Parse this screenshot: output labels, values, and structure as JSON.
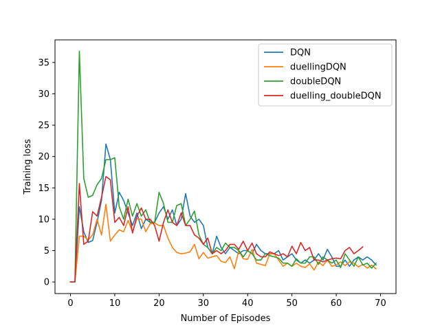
{
  "chart_data": {
    "type": "line",
    "title": "",
    "xlabel": "Number of Episodes",
    "ylabel": "Training loss",
    "xlim": [
      -3.5,
      73.5
    ],
    "ylim": [
      -1.85,
      38.6
    ],
    "xticks": [
      0,
      10,
      20,
      30,
      40,
      50,
      60,
      70
    ],
    "yticks": [
      0,
      5,
      10,
      15,
      20,
      25,
      30,
      35
    ],
    "grid": false,
    "legend_position": "top-right",
    "series": [
      {
        "name": "DQN",
        "color": "#1f77b4",
        "x": [
          0,
          1,
          2,
          3,
          4,
          5,
          6,
          7,
          8,
          9,
          10,
          11,
          12,
          13,
          14,
          15,
          16,
          17,
          18,
          19,
          20,
          21,
          22,
          23,
          24,
          25,
          26,
          27,
          28,
          29,
          30,
          31,
          32,
          33,
          34,
          35,
          36,
          37,
          38,
          39,
          40,
          41,
          42,
          43,
          44,
          45,
          46,
          47,
          48,
          49,
          50,
          51,
          52,
          53,
          54,
          55,
          56,
          57,
          58,
          59,
          60,
          61,
          62,
          63,
          64,
          65,
          66,
          67,
          68,
          69
        ],
        "y": [
          0,
          0,
          12,
          8,
          6.3,
          6.6,
          9.5,
          13,
          22,
          19.5,
          11,
          14.3,
          13,
          11,
          9,
          11,
          8.5,
          10,
          9.5,
          9.5,
          11,
          12,
          10,
          11.5,
          9,
          10,
          14.1,
          10.5,
          9.5,
          10,
          9,
          5.5,
          4.5,
          7.3,
          5.5,
          4.5,
          5.5,
          5,
          4.5,
          5,
          5,
          4.5,
          6,
          5,
          4.5,
          4.5,
          4.5,
          5,
          3.5,
          4,
          4.5,
          3.5,
          3,
          3.5,
          3,
          3.5,
          4.5,
          3.5,
          5.2,
          4,
          2.5,
          2.5,
          3.5,
          2.5,
          3.5,
          4,
          3.5,
          4,
          3.5,
          2.7
        ]
      },
      {
        "name": "duellingDQN",
        "color": "#ff7f0e",
        "x": [
          0,
          1,
          2,
          3,
          4,
          5,
          6,
          7,
          8,
          9,
          10,
          11,
          12,
          13,
          14,
          15,
          16,
          17,
          18,
          19,
          20,
          21,
          22,
          23,
          24,
          25,
          26,
          27,
          28,
          29,
          30,
          31,
          32,
          33,
          34,
          35,
          36,
          37,
          38,
          39,
          40,
          41,
          42,
          43,
          44,
          45,
          46,
          47,
          48,
          49,
          50,
          51,
          52,
          53,
          54,
          55,
          56,
          57,
          58,
          59,
          60,
          61,
          62,
          63,
          64,
          65,
          66,
          67,
          68,
          69
        ],
        "y": [
          0,
          0,
          7.3,
          7.3,
          6.7,
          7.5,
          10,
          7.5,
          12.4,
          6.5,
          7.5,
          8.3,
          8,
          9.8,
          8,
          10.1,
          10,
          8,
          9.3,
          9.4,
          9,
          9,
          7,
          5.5,
          4.7,
          4.5,
          4.6,
          4.8,
          6,
          3.7,
          4.7,
          3.8,
          4,
          4.2,
          3.3,
          3.1,
          4,
          2.1,
          5,
          3.7,
          3.6,
          5.2,
          3,
          2.8,
          2.6,
          4.5,
          4.5,
          3.5,
          2.5,
          3,
          2.5,
          3,
          2.5,
          2.3,
          2.9,
          1.9,
          3.2,
          2.6,
          3.5,
          2.5,
          2.7,
          3.2,
          2.6,
          3.2,
          3,
          2.4,
          2.8,
          2.2,
          2.7,
          2.1
        ]
      },
      {
        "name": "doubleDQN",
        "color": "#2ca02c",
        "x": [
          0,
          1,
          2,
          3,
          4,
          5,
          6,
          7,
          8,
          9,
          10,
          11,
          12,
          13,
          14,
          15,
          16,
          17,
          18,
          19,
          20,
          21,
          22,
          23,
          24,
          25,
          26,
          27,
          28,
          29,
          30,
          31,
          32,
          33,
          34,
          35,
          36,
          37,
          38,
          39,
          40,
          41,
          42,
          43,
          44,
          45,
          46,
          47,
          48,
          49,
          50,
          51,
          52,
          53,
          54,
          55,
          56,
          57,
          58,
          59,
          60,
          61,
          62,
          63,
          64,
          65,
          66,
          67,
          68,
          69
        ],
        "y": [
          0,
          0,
          36.8,
          16.5,
          13.5,
          13.8,
          15.5,
          16.5,
          19.5,
          19.5,
          19.8,
          12,
          10,
          13.2,
          10.5,
          12.5,
          10.5,
          11.5,
          9.5,
          9.5,
          14.3,
          12.5,
          9.5,
          9.5,
          12.2,
          12.5,
          9,
          10,
          11.3,
          7.5,
          6,
          5.5,
          4.5,
          5.5,
          5,
          6.2,
          5.5,
          5.5,
          5,
          4,
          5,
          4.5,
          3.5,
          3.5,
          4.5,
          4.2,
          4,
          3.8,
          3,
          3,
          2.5,
          3.7,
          3,
          3,
          4,
          4,
          2.8,
          4,
          3.5,
          3,
          3.5,
          2.3,
          4.5,
          3.5,
          2.5,
          4,
          2.7,
          3,
          2.2,
          3
        ]
      },
      {
        "name": "duelling_doubleDQN",
        "color": "#d62728",
        "x": [
          0,
          1,
          2,
          3,
          4,
          5,
          6,
          7,
          8,
          9,
          10,
          11,
          12,
          13,
          14,
          15,
          16,
          17,
          18,
          19,
          20,
          21,
          22,
          23,
          24,
          25,
          26,
          27,
          28,
          29,
          30,
          31,
          32,
          33,
          34,
          35,
          36,
          37,
          38,
          39,
          40,
          41,
          42,
          43,
          44,
          45,
          46,
          47,
          48,
          49,
          50,
          51,
          52,
          53,
          54,
          55,
          56,
          57,
          58,
          59,
          60,
          61,
          62,
          63,
          64,
          65,
          66
        ],
        "y": [
          0,
          0,
          15.7,
          6,
          6.5,
          11.2,
          10.5,
          13.5,
          16.8,
          16.3,
          9.5,
          10.3,
          9,
          12,
          7.8,
          10.5,
          11.8,
          10,
          10,
          9,
          6.5,
          9.5,
          11.5,
          9.5,
          9,
          11,
          9,
          9,
          7.5,
          7,
          6,
          7,
          4.5,
          5,
          4.5,
          5,
          6,
          6,
          5.2,
          6.5,
          5,
          6.2,
          4.5,
          4,
          4,
          4.8,
          4.5,
          4.2,
          4.5,
          4,
          5.7,
          4.5,
          6.3,
          5,
          5.5,
          3.5,
          3.5,
          3.2,
          3.5,
          3.7,
          3.8,
          3.7,
          5,
          5.5,
          4.5,
          5,
          5.6
        ]
      }
    ]
  }
}
